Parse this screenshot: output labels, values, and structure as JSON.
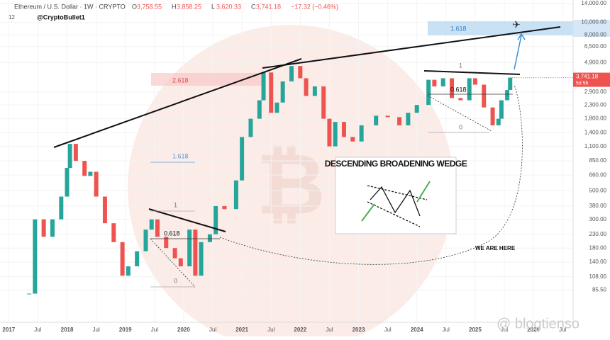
{
  "chart_data": {
    "type": "candlestick",
    "title": "Ethereum / U.S. Dollar · 1W · CRYPTO",
    "ohlc": [
      {
        "label": "O",
        "value": "3,758.55"
      },
      {
        "label": "H",
        "value": "3,858.25"
      },
      {
        "label": "L",
        "value": "3,620.33"
      },
      {
        "label": "C",
        "value": "3,741.18"
      }
    ],
    "change": "−17.32 (−0.46%)",
    "indicator_count": "12",
    "author": "@CryptoBullet1",
    "watermark": "@ blogtienso",
    "last_price": 3741.18,
    "last_price_label": "3,741.18",
    "countdown": "5d 5h",
    "up_color": "#26a69a",
    "down_color": "#ef5350",
    "log_scale": true,
    "x": [
      2017.35,
      2017.45,
      2017.6,
      2017.75,
      2017.9,
      2018.0,
      2018.05,
      2018.15,
      2018.3,
      2018.4,
      2018.5,
      2018.65,
      2018.8,
      2018.95,
      2019.05,
      2019.2,
      2019.35,
      2019.45,
      2019.55,
      2019.7,
      2019.85,
      2019.95,
      2020.1,
      2020.2,
      2020.3,
      2020.45,
      2020.55,
      2020.7,
      2020.9,
      2021.0,
      2021.15,
      2021.3,
      2021.37,
      2021.5,
      2021.6,
      2021.7,
      2021.85,
      2022.0,
      2022.1,
      2022.25,
      2022.4,
      2022.5,
      2022.6,
      2022.75,
      2022.9,
      2023.05,
      2023.3,
      2023.5,
      2023.7,
      2023.85,
      2024.0,
      2024.2,
      2024.3,
      2024.45,
      2024.6,
      2024.75,
      2024.9,
      2025.0,
      2025.15,
      2025.3,
      2025.4,
      2025.45,
      2025.55,
      2025.6
    ],
    "values": [
      80,
      300,
      220,
      300,
      450,
      750,
      1150,
      850,
      650,
      700,
      450,
      280,
      200,
      110,
      130,
      170,
      250,
      300,
      220,
      180,
      150,
      130,
      250,
      110,
      200,
      230,
      380,
      360,
      600,
      1300,
      1800,
      2500,
      4100,
      2000,
      2400,
      3500,
      4600,
      3700,
      2700,
      3200,
      1800,
      1100,
      1700,
      1300,
      1200,
      1600,
      1900,
      1850,
      1600,
      2000,
      2300,
      3600,
      3200,
      3700,
      2600,
      2500,
      3700,
      3300,
      2200,
      1600,
      1800,
      2500,
      3000,
      3741.18
    ],
    "xlim": [
      2016.85,
      2026.68
    ],
    "xticks": [
      {
        "value": 2017,
        "label": "2017"
      },
      {
        "value": 2017.5,
        "label": "Jul"
      },
      {
        "value": 2018,
        "label": "2018"
      },
      {
        "value": 2018.5,
        "label": "Jul"
      },
      {
        "value": 2019,
        "label": "2019"
      },
      {
        "value": 2019.5,
        "label": "Jul"
      },
      {
        "value": 2020,
        "label": "2020"
      },
      {
        "value": 2020.5,
        "label": "Jul"
      },
      {
        "value": 2021,
        "label": "2021"
      },
      {
        "value": 2021.5,
        "label": "Jul"
      },
      {
        "value": 2022,
        "label": "2022"
      },
      {
        "value": 2022.5,
        "label": "Jul"
      },
      {
        "value": 2023,
        "label": "2023"
      },
      {
        "value": 2023.5,
        "label": "Jul"
      },
      {
        "value": 2024,
        "label": "2024"
      },
      {
        "value": 2024.5,
        "label": "Jul"
      },
      {
        "value": 2025,
        "label": "2025"
      },
      {
        "value": 2025.5,
        "label": "Jul"
      },
      {
        "value": 2026,
        "label": "2026"
      },
      {
        "value": 2026.5,
        "label": "Jul"
      }
    ],
    "ylim": [
      48,
      14900
    ],
    "yticks": [
      {
        "value": 14000,
        "label": "14,000.00"
      },
      {
        "value": 10000,
        "label": "10,000.00"
      },
      {
        "value": 8000,
        "label": "8,000.00"
      },
      {
        "value": 6500,
        "label": "6,500.00"
      },
      {
        "value": 4900,
        "label": "4,900.00"
      },
      {
        "value": 2900,
        "label": "2,900.00"
      },
      {
        "value": 2300,
        "label": "2,300.00"
      },
      {
        "value": 1800,
        "label": "1,800.00"
      },
      {
        "value": 1400,
        "label": "1,400.00"
      },
      {
        "value": 1100,
        "label": "1,100.00"
      },
      {
        "value": 850,
        "label": "850.00"
      },
      {
        "value": 660,
        "label": "660.00"
      },
      {
        "value": 500,
        "label": "500.00"
      },
      {
        "value": 380,
        "label": "380.00"
      },
      {
        "value": 300,
        "label": "300.00"
      },
      {
        "value": 230,
        "label": "230.00"
      },
      {
        "value": 180,
        "label": "180.00"
      },
      {
        "value": 140,
        "label": "140.00"
      },
      {
        "value": 108,
        "label": "108.00"
      },
      {
        "value": {
          "v": 85.5
        },
        "label": "85.50"
      }
    ],
    "annotations": [
      "2.618",
      "1.618",
      "1",
      "0.618",
      "0",
      "1",
      "0.618",
      "0",
      "1.618",
      "DESCENDING BROADENING WEDGE",
      "WE ARE HERE"
    ]
  }
}
